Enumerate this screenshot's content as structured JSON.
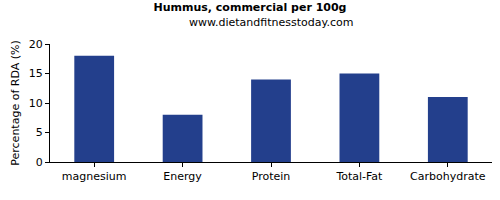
{
  "chart_data": {
    "type": "bar",
    "title": "Hummus, commercial per 100g",
    "subtitle": "www.dietandfitnesstoday.com",
    "y_label": "Percentage of RDA (%)",
    "categories": [
      "magnesium",
      "Energy",
      "Protein",
      "Total-Fat",
      "Carbohydrate"
    ],
    "values": [
      18,
      8,
      14,
      15,
      11
    ],
    "color": "#233f8c",
    "ylim": [
      0,
      20
    ],
    "yticks": [
      0,
      5,
      10,
      15,
      20
    ],
    "grid": false
  }
}
